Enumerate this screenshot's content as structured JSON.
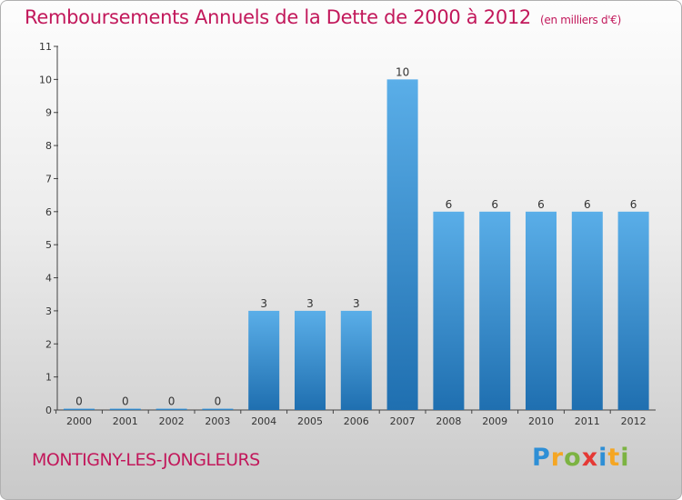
{
  "header": {
    "title": "Remboursements Annuels de la Dette de 2000 à 2012",
    "unit": "(en milliers d'€)"
  },
  "footer": {
    "commune": "MONTIGNY-LES-JONGLEURS",
    "logo": [
      "P",
      "r",
      "o",
      "x",
      "i",
      "t",
      "i"
    ]
  },
  "chart_data": {
    "type": "bar",
    "title": "Remboursements Annuels de la Dette de 2000 à 2012",
    "subtitle": "(en milliers d'€)",
    "xlabel": "",
    "ylabel": "",
    "categories": [
      "2000",
      "2001",
      "2002",
      "2003",
      "2004",
      "2005",
      "2006",
      "2007",
      "2008",
      "2009",
      "2010",
      "2011",
      "2012"
    ],
    "values": [
      0,
      0,
      0,
      0,
      3,
      3,
      3,
      10,
      6,
      6,
      6,
      6,
      6
    ],
    "data_labels": [
      "0",
      "0",
      "0",
      "0",
      "3",
      "3",
      "3",
      "10",
      "6",
      "6",
      "6",
      "6",
      "6"
    ],
    "yticks": [
      0,
      1,
      2,
      3,
      4,
      5,
      6,
      7,
      8,
      9,
      10,
      11
    ],
    "ylim": [
      0,
      11
    ],
    "grid": false,
    "legend": "none",
    "colors": {
      "bar_light": "#5aaee8",
      "bar_dark": "#1f6fb0",
      "axis": "#444444",
      "text": "#333333"
    }
  }
}
